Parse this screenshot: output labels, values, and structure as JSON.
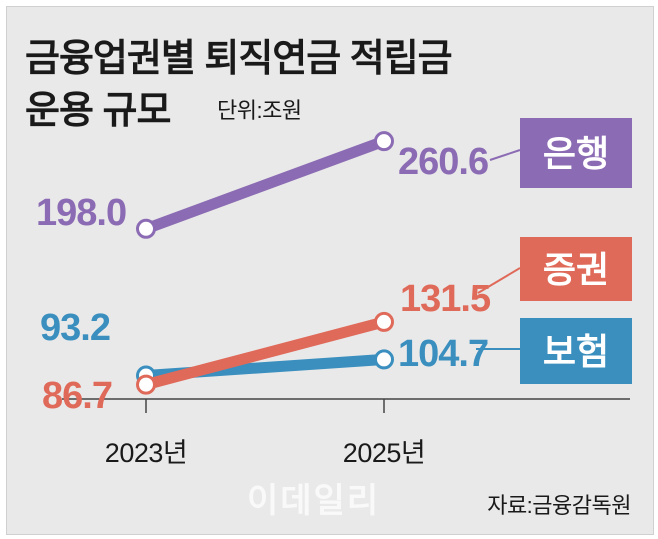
{
  "title_lines": [
    "금융업권별 퇴직연금 적립금",
    "운용 규모"
  ],
  "unit": "단위:조원",
  "source": "자료:금융감독원",
  "watermark": "이데일리",
  "chart_data": {
    "type": "line",
    "x": [
      "2023년",
      "2025년"
    ],
    "ylim": [
      80,
      270
    ],
    "series": [
      {
        "name": "은행",
        "values": [
          198.0,
          260.6
        ],
        "labels": [
          "198.0",
          "260.6"
        ],
        "color": "#8b6bb3"
      },
      {
        "name": "증권",
        "values": [
          86.7,
          131.5
        ],
        "labels": [
          "86.7",
          "131.5"
        ],
        "color": "#e06a5a"
      },
      {
        "name": "보험",
        "values": [
          93.2,
          104.7
        ],
        "labels": [
          "93.2",
          "104.7"
        ],
        "color": "#3a8fbf"
      }
    ]
  }
}
